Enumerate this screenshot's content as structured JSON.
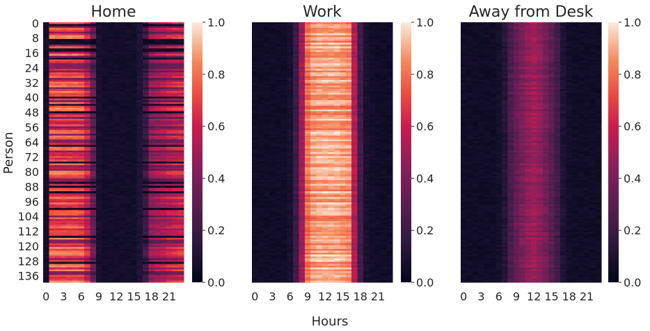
{
  "figure": {
    "xlabel": "Hours",
    "ylabel": "Person"
  },
  "chart_data": [
    {
      "type": "heatmap",
      "title": "Home",
      "x_ticks": [
        "0",
        "3",
        "6",
        "9",
        "12",
        "15",
        "18",
        "21"
      ],
      "y_ticks": [
        "0",
        "8",
        "16",
        "24",
        "32",
        "40",
        "48",
        "56",
        "64",
        "72",
        "80",
        "88",
        "96",
        "104",
        "112",
        "120",
        "128",
        "136"
      ],
      "n_rows": 140,
      "n_cols": 24,
      "colorbar": {
        "min": 0.0,
        "max": 1.0,
        "ticks": [
          "0.0",
          "0.2",
          "0.4",
          "0.6",
          "0.8",
          "1.0"
        ]
      },
      "hour_profile": [
        0.05,
        0.78,
        0.78,
        0.78,
        0.78,
        0.78,
        0.76,
        0.65,
        0.38,
        0.06,
        0.04,
        0.04,
        0.04,
        0.04,
        0.04,
        0.04,
        0.08,
        0.22,
        0.5,
        0.55,
        0.58,
        0.62,
        0.64,
        0.66
      ],
      "row_factor": "varied"
    },
    {
      "type": "heatmap",
      "title": "Work",
      "x_ticks": [
        "0",
        "3",
        "6",
        "9",
        "12",
        "15",
        "18",
        "21"
      ],
      "y_ticks": [],
      "n_rows": 140,
      "n_cols": 24,
      "colorbar": {
        "min": 0.0,
        "max": 1.0,
        "ticks": [
          "0.0",
          "0.2",
          "0.4",
          "0.6",
          "0.8",
          "1.0"
        ]
      },
      "hour_profile": [
        0.03,
        0.03,
        0.03,
        0.03,
        0.03,
        0.03,
        0.06,
        0.2,
        0.5,
        0.8,
        0.88,
        0.9,
        0.9,
        0.9,
        0.9,
        0.88,
        0.86,
        0.55,
        0.22,
        0.06,
        0.04,
        0.03,
        0.03,
        0.03
      ],
      "row_factor": "mild"
    },
    {
      "type": "heatmap",
      "title": "Away from Desk",
      "x_ticks": [
        "0",
        "3",
        "6",
        "9",
        "12",
        "15",
        "18",
        "21"
      ],
      "y_ticks": [],
      "n_rows": 140,
      "n_cols": 24,
      "colorbar": {
        "min": 0.0,
        "max": 1.0,
        "ticks": [
          "0.0",
          "0.2",
          "0.4",
          "0.6",
          "0.8",
          "1.0"
        ]
      },
      "hour_profile": [
        0.03,
        0.03,
        0.03,
        0.03,
        0.03,
        0.03,
        0.05,
        0.12,
        0.25,
        0.33,
        0.4,
        0.46,
        0.5,
        0.46,
        0.38,
        0.3,
        0.22,
        0.1,
        0.04,
        0.03,
        0.03,
        0.03,
        0.03,
        0.03
      ],
      "row_factor": "mild"
    }
  ]
}
